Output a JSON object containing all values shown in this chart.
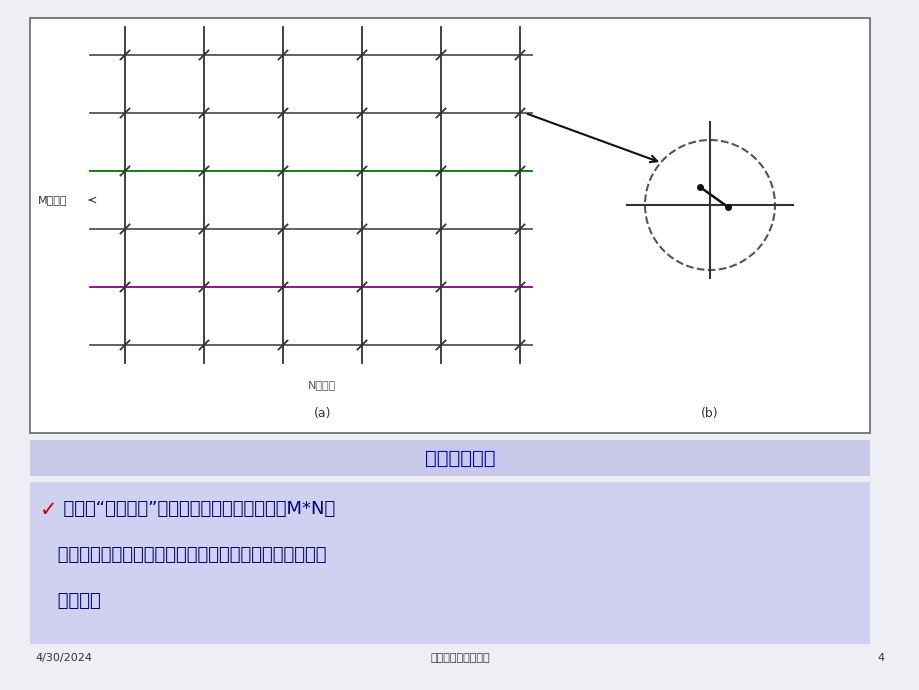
{
  "bg_color": "#eeeef5",
  "slide_bg": "#ffffff",
  "title_bar_color": "#c8c8e8",
  "title_text": "空分交换矩阵",
  "title_color": "#0000cc",
  "content_bar_color": "#d0d0f0",
  "content_color": "#000080",
  "checkmark_color": "#cc0000",
  "footer_date": "4/30/2024",
  "footer_center": "莱阳农学院信息学院",
  "footer_page": "4",
  "grid_rows": 6,
  "grid_cols": 6,
  "diagram_label_a": "(a)",
  "diagram_label_b": "(b)",
  "m_label": "M条入线",
  "n_label": "N条出线",
  "content_lines": [
    "缺点：“全利用度”，需要的交叉节点数多（共M*N个",
    "），节点利用率不高，解决方法：利用多级交叉矩阵或数",
    "字交换。"
  ],
  "line_colors": [
    "#555555",
    "#555555",
    "#007700",
    "#555555",
    "#880088",
    "#555555"
  ]
}
